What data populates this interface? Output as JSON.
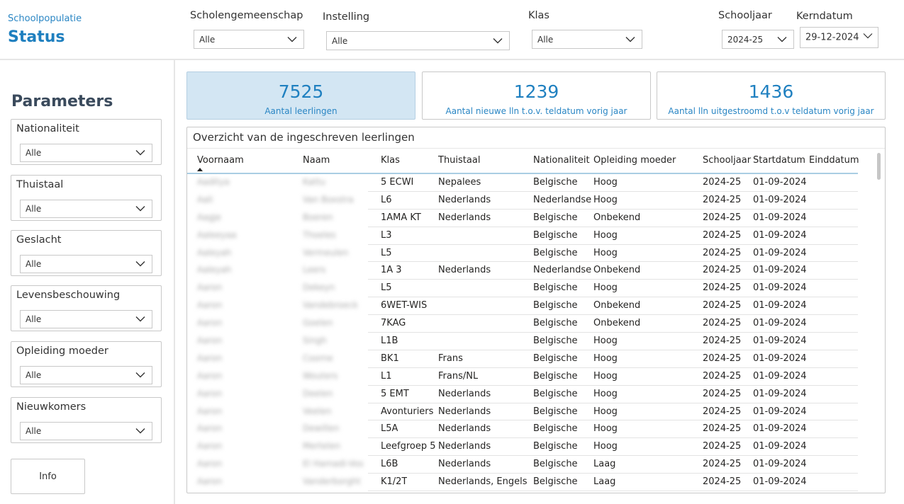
{
  "header": {
    "breadcrumb": "Schoolpopulatie",
    "title": "Status"
  },
  "filters": {
    "scholengemeenschap": {
      "label": "Scholengemeenschap",
      "value": "Alle"
    },
    "instelling": {
      "label": "Instelling",
      "value": "Alle"
    },
    "klas": {
      "label": "Klas",
      "value": "Alle"
    },
    "schooljaar": {
      "label": "Schooljaar",
      "value": "2024-25"
    },
    "kerndatum": {
      "label": "Kerndatum",
      "value": "29-12-2024"
    }
  },
  "sidebar": {
    "title": "Parameters",
    "params": [
      {
        "label": "Nationaliteit",
        "value": "Alle"
      },
      {
        "label": "Thuistaal",
        "value": "Alle"
      },
      {
        "label": "Geslacht",
        "value": "Alle"
      },
      {
        "label": "Levensbeschouwing",
        "value": "Alle"
      },
      {
        "label": "Opleiding moeder",
        "value": "Alle"
      },
      {
        "label": "Nieuwkomers",
        "value": "Alle"
      }
    ],
    "info_label": "Info"
  },
  "kpis": [
    {
      "value": "7525",
      "label": "Aantal leerlingen"
    },
    {
      "value": "1239",
      "label": "Aantal nieuwe lln t.o.v. teldatum vorig jaar"
    },
    {
      "value": "1436",
      "label": "Aantal lln uitgestroomd t.o.v teldatum vorig jaar"
    }
  ],
  "table": {
    "title": "Overzicht van de ingeschreven leerlingen",
    "columns": [
      "Voornaam",
      "Naam",
      "Klas",
      "Thuistaal",
      "Nationaliteit",
      "Opleiding moeder",
      "Schooljaar",
      "Startdatum",
      "Einddatum"
    ],
    "rows": [
      [
        "Aaditya",
        "Kattu",
        "5 ECWI",
        "Nepalees",
        "Belgische",
        "Hoog",
        "2024-25",
        "01-09-2024",
        ""
      ],
      [
        "Aali",
        "Van Boxstra",
        "L6",
        "Nederlands",
        "Nederlandse",
        "Hoog",
        "2024-25",
        "01-09-2024",
        ""
      ],
      [
        "Aagje",
        "Boeren",
        "1AMA KT",
        "Nederlands",
        "Belgische",
        "Onbekend",
        "2024-25",
        "01-09-2024",
        ""
      ],
      [
        "Aaleeyaa",
        "Thoeles",
        "L3",
        "",
        "Belgische",
        "Hoog",
        "2024-25",
        "01-09-2024",
        ""
      ],
      [
        "Aaleyah",
        "Vermeulen",
        "L5",
        "",
        "Belgische",
        "Hoog",
        "2024-25",
        "01-09-2024",
        ""
      ],
      [
        "Aaleyah",
        "Leers",
        "1A 3",
        "Nederlands",
        "Nederlandse",
        "Onbekend",
        "2024-25",
        "01-09-2024",
        ""
      ],
      [
        "Aaron",
        "Dekeyn",
        "L5",
        "",
        "Belgische",
        "Hoog",
        "2024-25",
        "01-09-2024",
        ""
      ],
      [
        "Aaron",
        "Vandebroeck",
        "6WET-WIS",
        "",
        "Belgische",
        "Onbekend",
        "2024-25",
        "01-09-2024",
        ""
      ],
      [
        "Aaron",
        "Goelen",
        "7KAG",
        "",
        "Belgische",
        "Onbekend",
        "2024-25",
        "01-09-2024",
        ""
      ],
      [
        "Aaron",
        "Singh",
        "L1B",
        "",
        "Belgische",
        "Hoog",
        "2024-25",
        "01-09-2024",
        ""
      ],
      [
        "Aaron",
        "Coorne",
        "BK1",
        "Frans",
        "Belgische",
        "Hoog",
        "2024-25",
        "01-09-2024",
        ""
      ],
      [
        "Aaron",
        "Wouters",
        "L1",
        "Frans/NL",
        "Belgische",
        "Hoog",
        "2024-25",
        "01-09-2024",
        ""
      ],
      [
        "Aaron",
        "Deelen",
        "5 EMT",
        "Nederlands",
        "Belgische",
        "Hoog",
        "2024-25",
        "01-09-2024",
        ""
      ],
      [
        "Aaron",
        "Veelen",
        "Avonturiers",
        "Nederlands",
        "Belgische",
        "Hoog",
        "2024-25",
        "01-09-2024",
        ""
      ],
      [
        "Aaron",
        "Dewillen",
        "L5A",
        "Nederlands",
        "Belgische",
        "Hoog",
        "2024-25",
        "01-09-2024",
        ""
      ],
      [
        "Aaron",
        "Mertelen",
        "Leefgroep 5",
        "Nederlands",
        "Belgische",
        "Hoog",
        "2024-25",
        "01-09-2024",
        ""
      ],
      [
        "Aaron",
        "El Hamadi-Vos",
        "L6B",
        "Nederlands",
        "Belgische",
        "Laag",
        "2024-25",
        "01-09-2024",
        ""
      ],
      [
        "Aaron",
        "Vanderborght",
        "K1/2T",
        "Nederlands, Engels",
        "Belgische",
        "Laag",
        "2024-25",
        "01-09-2024",
        ""
      ]
    ]
  }
}
